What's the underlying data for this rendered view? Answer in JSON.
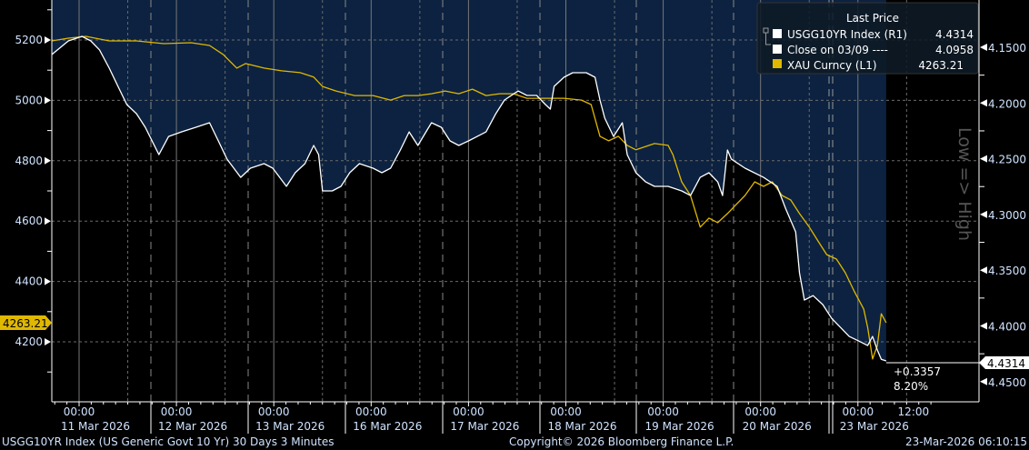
{
  "colors": {
    "background": "#000000",
    "fill": "#0c2240",
    "yield_line": "#ffffff",
    "gold_line": "#e0b800",
    "grid": "#6b6b6b",
    "axis_text": "#dbe8ff"
  },
  "legend": {
    "title": "Last Price",
    "items": [
      {
        "label": "USGG10YR Index  (R1)",
        "value": "4.4314",
        "color": "#ffffff"
      },
      {
        "label": "Close on 03/09 ----",
        "value": "4.0958",
        "color": "#ffffff"
      },
      {
        "label": "XAU Curncy  (L1)",
        "value": "4263.21",
        "color": "#e0b800"
      }
    ]
  },
  "annotations": {
    "change": "+0.3357",
    "change_pct": "8.20%",
    "right_last_tag": "4.4314",
    "left_last_tag": "4263.21",
    "right_axis_note": "Low => High"
  },
  "footer": {
    "left": "USGG10YR Index (US Generic Govt 10 Yr) 30 Days 3 Minutes",
    "center": "Copyright© 2026 Bloomberg Finance L.P.",
    "right": "23-Mar-2026 06:10:15"
  },
  "chart_data": {
    "type": "line",
    "title": "",
    "x_unit": "days since 11 Mar 2026 00:00 (trading-day axis)",
    "x_ticks": [
      {
        "t": 0,
        "time": "00:00",
        "date": "11 Mar 2026"
      },
      {
        "t": 1,
        "time": "00:00",
        "date": "12 Mar 2026"
      },
      {
        "t": 2,
        "time": "00:00",
        "date": "13 Mar 2026"
      },
      {
        "t": 3,
        "time": "00:00",
        "date": "16 Mar 2026"
      },
      {
        "t": 4,
        "time": "00:00",
        "date": "17 Mar 2026"
      },
      {
        "t": 5,
        "time": "00:00",
        "date": "18 Mar 2026"
      },
      {
        "t": 6,
        "time": "00:00",
        "date": "19 Mar 2026"
      },
      {
        "t": 7,
        "time": "00:00",
        "date": "20 Mar 2026"
      },
      {
        "t": 8,
        "time": "00:00",
        "date": "23 Mar 2026"
      },
      {
        "t": 8.57,
        "time": "12:00",
        "date": ""
      }
    ],
    "left_axis": {
      "label": "XAU Curncy",
      "ylim": [
        4050,
        5250
      ],
      "ticks": [
        4200,
        4400,
        4600,
        4800,
        5000,
        5200
      ]
    },
    "right_axis": {
      "label": "USGG10YR Index",
      "inverted": true,
      "ylim": [
        4.1436,
        4.4736
      ],
      "ticks": [
        "4.1500",
        "4.2000",
        "4.2500",
        "4.3000",
        "4.3500",
        "4.4000",
        "4.4500"
      ]
    },
    "grid": true,
    "legend_placement": "top-right",
    "series": [
      {
        "name": "USGG10YR Index (R1)",
        "axis": "right",
        "color": "#ffffff",
        "filled": true,
        "points": [
          [
            -0.28,
            4.1565
          ],
          [
            -0.11,
            4.1443
          ],
          [
            0.03,
            4.1402
          ],
          [
            0.12,
            4.1443
          ],
          [
            0.21,
            4.1524
          ],
          [
            0.31,
            4.1688
          ],
          [
            0.4,
            4.1851
          ],
          [
            0.49,
            4.2014
          ],
          [
            0.59,
            4.2096
          ],
          [
            0.68,
            4.2218
          ],
          [
            0.82,
            4.2463
          ],
          [
            0.92,
            4.23
          ],
          [
            1.05,
            4.2259
          ],
          [
            1.2,
            4.2218
          ],
          [
            1.34,
            4.2177
          ],
          [
            1.43,
            4.234
          ],
          [
            1.52,
            4.2504
          ],
          [
            1.66,
            4.2667
          ],
          [
            1.76,
            4.2585
          ],
          [
            1.9,
            4.2544
          ],
          [
            1.99,
            4.2585
          ],
          [
            2.13,
            4.2748
          ],
          [
            2.22,
            4.2626
          ],
          [
            2.32,
            4.2544
          ],
          [
            2.41,
            4.2381
          ],
          [
            2.46,
            4.2463
          ],
          [
            2.5,
            4.2789
          ],
          [
            2.6,
            4.2789
          ],
          [
            2.69,
            4.2748
          ],
          [
            2.78,
            4.2626
          ],
          [
            2.88,
            4.2544
          ],
          [
            3.02,
            4.2585
          ],
          [
            3.11,
            4.2626
          ],
          [
            3.2,
            4.2585
          ],
          [
            3.3,
            4.2422
          ],
          [
            3.39,
            4.2259
          ],
          [
            3.48,
            4.2381
          ],
          [
            3.62,
            4.2177
          ],
          [
            3.72,
            4.2218
          ],
          [
            3.81,
            4.234
          ],
          [
            3.9,
            4.2381
          ],
          [
            4.0,
            4.234
          ],
          [
            4.09,
            4.23
          ],
          [
            4.18,
            4.2259
          ],
          [
            4.28,
            4.2096
          ],
          [
            4.37,
            4.1973
          ],
          [
            4.51,
            4.1892
          ],
          [
            4.6,
            4.1932
          ],
          [
            4.7,
            4.1932
          ],
          [
            4.79,
            4.2014
          ],
          [
            4.84,
            4.2055
          ],
          [
            4.88,
            4.1851
          ],
          [
            4.98,
            4.1769
          ],
          [
            5.07,
            4.1728
          ],
          [
            5.21,
            4.1728
          ],
          [
            5.3,
            4.1769
          ],
          [
            5.35,
            4.1973
          ],
          [
            5.4,
            4.2136
          ],
          [
            5.49,
            4.23
          ],
          [
            5.58,
            4.2177
          ],
          [
            5.63,
            4.2463
          ],
          [
            5.72,
            4.2626
          ],
          [
            5.82,
            4.2708
          ],
          [
            5.91,
            4.2748
          ],
          [
            6.05,
            4.2748
          ],
          [
            6.19,
            4.2789
          ],
          [
            6.28,
            4.283
          ],
          [
            6.38,
            4.2667
          ],
          [
            6.47,
            4.2626
          ],
          [
            6.56,
            4.2708
          ],
          [
            6.61,
            4.283
          ],
          [
            6.66,
            4.2422
          ],
          [
            6.7,
            4.2504
          ],
          [
            6.84,
            4.2585
          ],
          [
            7.03,
            4.2667
          ],
          [
            7.17,
            4.2748
          ],
          [
            7.26,
            4.2952
          ],
          [
            7.36,
            4.3157
          ],
          [
            7.4,
            4.3524
          ],
          [
            7.45,
            4.3768
          ],
          [
            7.54,
            4.3728
          ],
          [
            7.64,
            4.3809
          ],
          [
            7.73,
            4.3932
          ],
          [
            7.82,
            4.4013
          ],
          [
            7.91,
            4.4095
          ],
          [
            8.01,
            4.4136
          ],
          [
            8.1,
            4.4176
          ],
          [
            8.15,
            4.4095
          ],
          [
            8.2,
            4.4217
          ],
          [
            8.24,
            4.4299
          ],
          [
            8.29,
            4.4314
          ]
        ]
      },
      {
        "name": "XAU Curncy (L1)",
        "axis": "left",
        "color": "#e0b800",
        "filled": false,
        "points": [
          [
            -0.28,
            5197
          ],
          [
            -0.11,
            5206
          ],
          [
            0.07,
            5212
          ],
          [
            0.31,
            5197
          ],
          [
            0.59,
            5197
          ],
          [
            0.87,
            5188
          ],
          [
            1.15,
            5191
          ],
          [
            1.34,
            5182
          ],
          [
            1.48,
            5152
          ],
          [
            1.62,
            5107
          ],
          [
            1.71,
            5122
          ],
          [
            1.9,
            5107
          ],
          [
            2.08,
            5098
          ],
          [
            2.27,
            5092
          ],
          [
            2.41,
            5077
          ],
          [
            2.5,
            5046
          ],
          [
            2.64,
            5031
          ],
          [
            2.83,
            5016
          ],
          [
            3.02,
            5016
          ],
          [
            3.2,
            5001
          ],
          [
            3.34,
            5016
          ],
          [
            3.48,
            5016
          ],
          [
            3.62,
            5022
          ],
          [
            3.76,
            5031
          ],
          [
            3.9,
            5022
          ],
          [
            4.04,
            5037
          ],
          [
            4.18,
            5016
          ],
          [
            4.32,
            5022
          ],
          [
            4.46,
            5022
          ],
          [
            4.6,
            5007
          ],
          [
            4.79,
            5007
          ],
          [
            4.98,
            5007
          ],
          [
            5.16,
            5001
          ],
          [
            5.26,
            4986
          ],
          [
            5.35,
            4881
          ],
          [
            5.44,
            4866
          ],
          [
            5.54,
            4881
          ],
          [
            5.63,
            4851
          ],
          [
            5.72,
            4836
          ],
          [
            5.91,
            4857
          ],
          [
            6.05,
            4851
          ],
          [
            6.1,
            4820
          ],
          [
            6.19,
            4730
          ],
          [
            6.28,
            4685
          ],
          [
            6.38,
            4580
          ],
          [
            6.47,
            4610
          ],
          [
            6.56,
            4595
          ],
          [
            6.66,
            4625
          ],
          [
            6.75,
            4655
          ],
          [
            6.84,
            4685
          ],
          [
            6.94,
            4730
          ],
          [
            7.03,
            4715
          ],
          [
            7.12,
            4730
          ],
          [
            7.22,
            4685
          ],
          [
            7.31,
            4670
          ],
          [
            7.4,
            4625
          ],
          [
            7.5,
            4580
          ],
          [
            7.59,
            4534
          ],
          [
            7.68,
            4489
          ],
          [
            7.78,
            4474
          ],
          [
            7.87,
            4429
          ],
          [
            7.96,
            4369
          ],
          [
            8.06,
            4308
          ],
          [
            8.1,
            4248
          ],
          [
            8.15,
            4143
          ],
          [
            8.2,
            4188
          ],
          [
            8.24,
            4293
          ],
          [
            8.29,
            4263.21
          ]
        ]
      }
    ]
  }
}
